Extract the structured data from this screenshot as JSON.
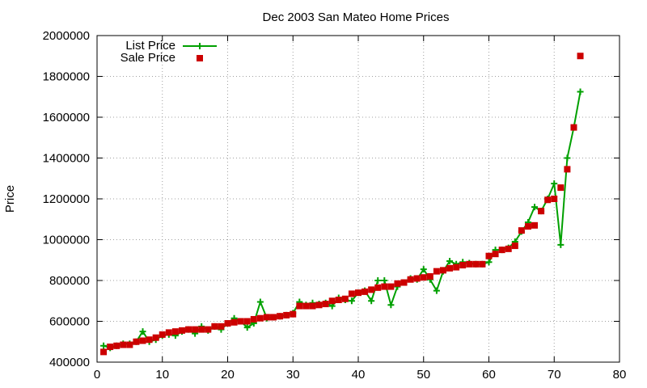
{
  "chart_data": {
    "type": "line",
    "title": "Dec 2003 San Mateo Home Prices",
    "xlabel": "",
    "ylabel": "Price",
    "xlim": [
      0,
      80
    ],
    "ylim": [
      400000,
      2000000
    ],
    "x_ticks": [
      0,
      10,
      20,
      30,
      40,
      50,
      60,
      70,
      80
    ],
    "y_ticks": [
      400000,
      600000,
      800000,
      1000000,
      1200000,
      1400000,
      1600000,
      1800000,
      2000000
    ],
    "grid": true,
    "legend_position": "top-left",
    "series": [
      {
        "name": "List Price",
        "style": "line-plus",
        "color": "#00a000",
        "x": [
          1,
          2,
          3,
          4,
          5,
          6,
          7,
          8,
          9,
          10,
          11,
          12,
          13,
          14,
          15,
          16,
          17,
          18,
          19,
          20,
          21,
          22,
          23,
          24,
          25,
          26,
          27,
          28,
          29,
          30,
          31,
          32,
          33,
          34,
          35,
          36,
          37,
          38,
          39,
          40,
          41,
          42,
          43,
          44,
          45,
          46,
          47,
          48,
          49,
          50,
          51,
          52,
          53,
          54,
          55,
          56,
          57,
          58,
          59,
          60,
          61,
          62,
          63,
          64,
          65,
          66,
          67,
          68,
          69,
          70,
          71,
          72,
          73,
          74
        ],
        "values": [
          480000,
          470000,
          480000,
          490000,
          490000,
          500000,
          550000,
          500000,
          510000,
          530000,
          535000,
          530000,
          550000,
          560000,
          540000,
          575000,
          555000,
          575000,
          560000,
          590000,
          615000,
          600000,
          570000,
          590000,
          695000,
          615000,
          620000,
          625000,
          630000,
          640000,
          695000,
          680000,
          690000,
          685000,
          690000,
          675000,
          715000,
          705000,
          700000,
          740000,
          750000,
          700000,
          800000,
          800000,
          680000,
          770000,
          790000,
          810000,
          805000,
          855000,
          805000,
          750000,
          845000,
          895000,
          880000,
          890000,
          885000,
          880000,
          880000,
          890000,
          950000,
          950000,
          960000,
          990000,
          1040000,
          1085000,
          1160000,
          1140000,
          1200000,
          1275000,
          975000,
          1400000,
          1550000,
          1725000
        ]
      },
      {
        "name": "Sale Price",
        "style": "square-markers",
        "color": "#cc0000",
        "x": [
          1,
          2,
          3,
          4,
          5,
          6,
          7,
          8,
          9,
          10,
          11,
          12,
          13,
          14,
          15,
          16,
          17,
          18,
          19,
          20,
          21,
          22,
          23,
          24,
          25,
          26,
          27,
          28,
          29,
          30,
          31,
          32,
          33,
          34,
          35,
          36,
          37,
          38,
          39,
          40,
          41,
          42,
          43,
          44,
          45,
          46,
          47,
          48,
          49,
          50,
          51,
          52,
          53,
          54,
          55,
          56,
          57,
          58,
          59,
          60,
          61,
          62,
          63,
          64,
          65,
          66,
          67,
          68,
          69,
          70,
          71,
          72,
          73,
          74
        ],
        "values": [
          450000,
          475000,
          480000,
          485000,
          485000,
          500000,
          505000,
          510000,
          520000,
          535000,
          545000,
          550000,
          555000,
          560000,
          560000,
          560000,
          560000,
          575000,
          575000,
          590000,
          595000,
          600000,
          600000,
          610000,
          615000,
          620000,
          620000,
          625000,
          630000,
          635000,
          675000,
          675000,
          675000,
          680000,
          685000,
          700000,
          705000,
          710000,
          735000,
          740000,
          745000,
          755000,
          765000,
          770000,
          770000,
          785000,
          790000,
          805000,
          810000,
          815000,
          820000,
          845000,
          850000,
          860000,
          865000,
          875000,
          880000,
          880000,
          880000,
          920000,
          930000,
          950000,
          955000,
          970000,
          1045000,
          1065000,
          1070000,
          1140000,
          1195000,
          1200000,
          1255000,
          1345000,
          1550000,
          1900000
        ]
      }
    ]
  }
}
